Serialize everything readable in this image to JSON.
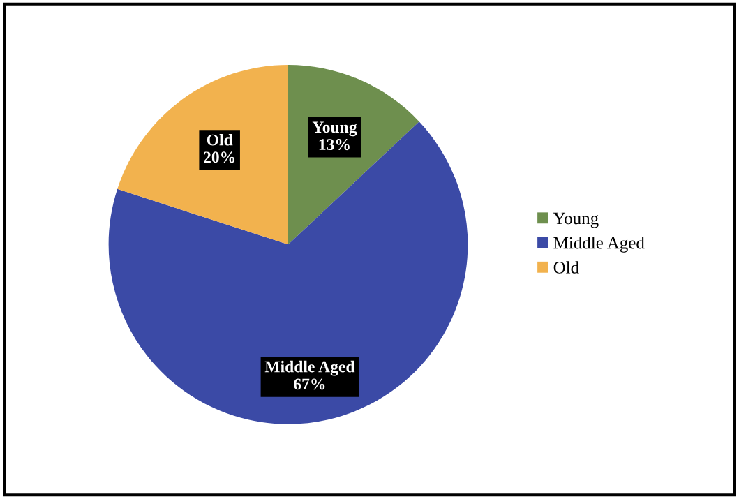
{
  "chart_data": {
    "type": "pie",
    "categories": [
      "Young",
      "Middle Aged",
      "Old"
    ],
    "values": [
      13,
      67,
      20
    ],
    "colors": [
      "#6e8f4e",
      "#3b4aa6",
      "#f2b24e"
    ],
    "value_labels": [
      "13%",
      "67%",
      "20%"
    ],
    "legend": "right"
  }
}
